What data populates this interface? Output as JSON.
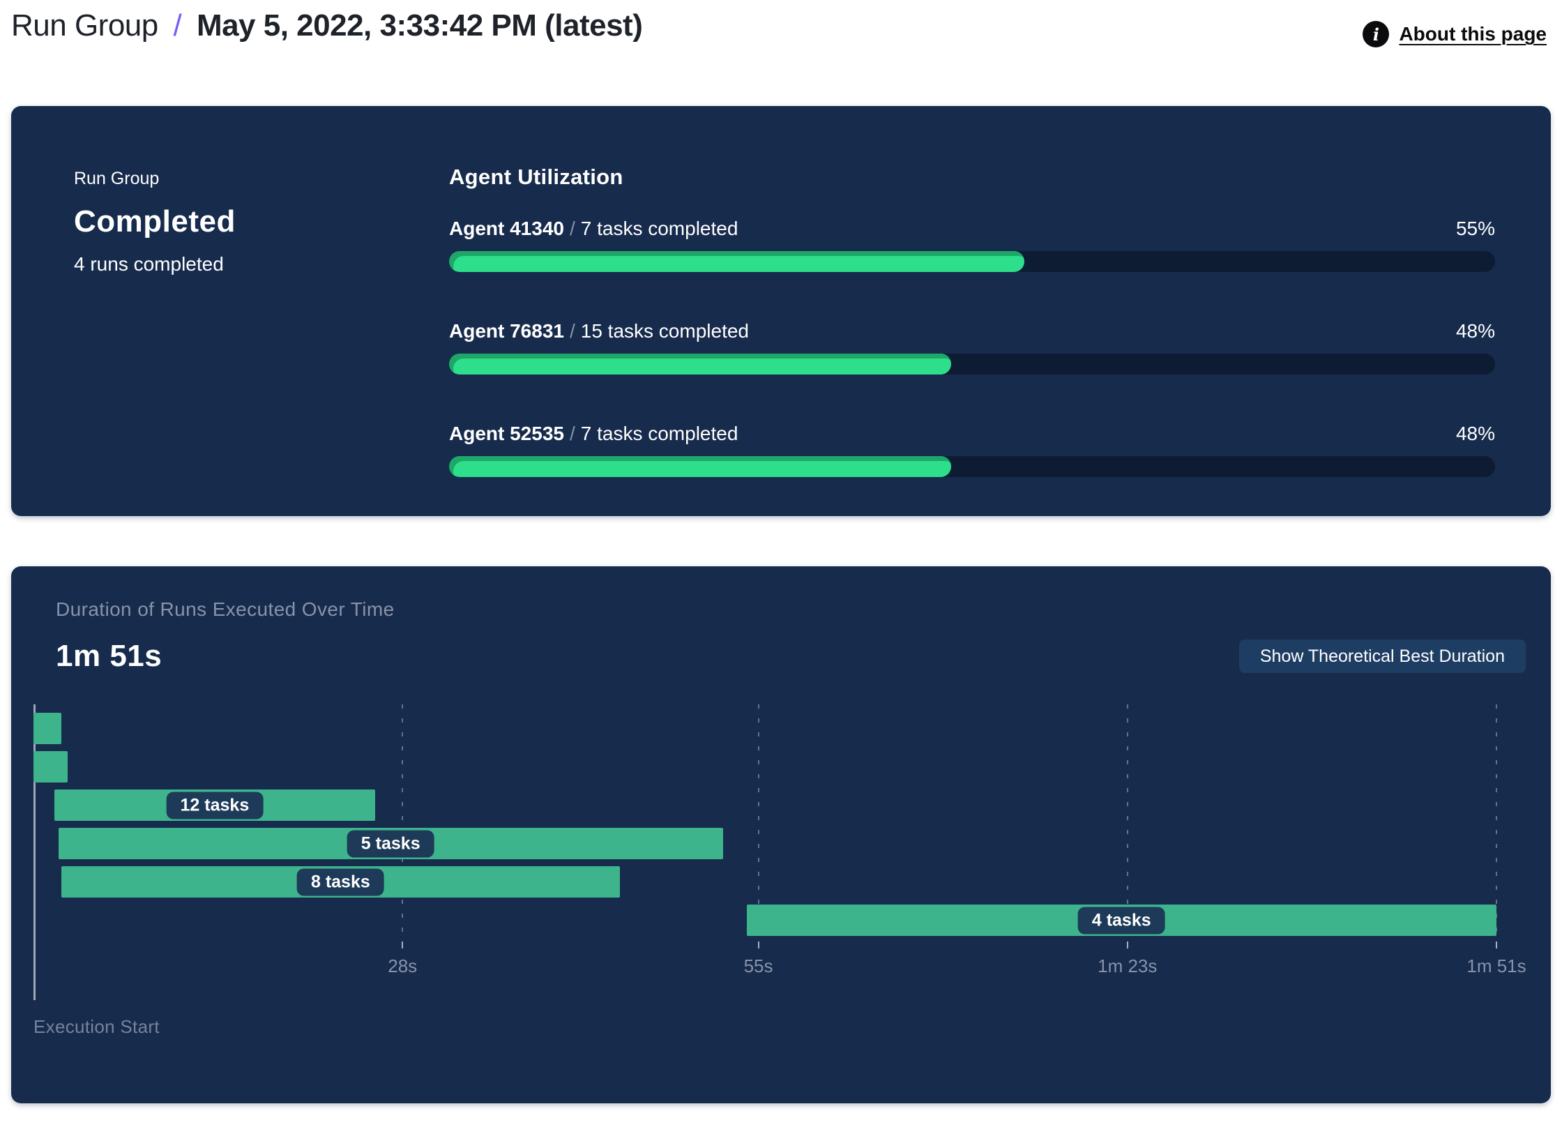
{
  "header": {
    "breadcrumb_root": "Run Group",
    "breadcrumb_separator": "/",
    "breadcrumb_current": "May 5, 2022, 3:33:42 PM (latest)",
    "info_icon_glyph": "i",
    "about_link": "About this page"
  },
  "summary": {
    "label": "Run Group",
    "status": "Completed",
    "runs_completed": "4 runs completed"
  },
  "duration_chart": {
    "button_label": "Show Theoretical Best Duration"
  },
  "colors": {
    "panel_navy": "#172B4D",
    "progress_track": "#0D1C33",
    "progress_green": "#2DDE8B",
    "progress_green_shade": "#1EA768",
    "gantt_green": "#3EB48C",
    "label_pill_navy": "#1D3A58",
    "button_navy": "#1E3D63",
    "accent_purple": "#7B5CF5",
    "muted_text": "#8793A9"
  },
  "chart_data": [
    {
      "type": "bar",
      "title": "Agent Utilization",
      "orientation": "horizontal",
      "categories": [
        "Agent 41340",
        "Agent 76831",
        "Agent 52535"
      ],
      "annotations": [
        "7 tasks completed",
        "15 tasks completed",
        "7 tasks completed"
      ],
      "values": [
        55,
        48,
        48
      ],
      "value_unit": "percent",
      "xlim": [
        0,
        100
      ],
      "grid": false
    },
    {
      "type": "gantt",
      "title": "Duration of Runs Executed Over Time",
      "total_duration_label": "1m 51s",
      "x_origin_label": "Execution Start",
      "time_axis": {
        "min_s": 0,
        "max_s": 111,
        "ticks": [
          {
            "s": 28,
            "label": "28s"
          },
          {
            "s": 55,
            "label": "55s"
          },
          {
            "s": 83,
            "label": "1m 23s"
          },
          {
            "s": 111,
            "label": "1m 51s"
          }
        ]
      },
      "runs": [
        {
          "start_s": 0,
          "end_s": 2.1,
          "tasks_label": ""
        },
        {
          "start_s": 0,
          "end_s": 2.6,
          "tasks_label": ""
        },
        {
          "start_s": 1.6,
          "end_s": 25.9,
          "tasks_label": "12 tasks"
        },
        {
          "start_s": 1.9,
          "end_s": 52.3,
          "tasks_label": "5 tasks"
        },
        {
          "start_s": 2.1,
          "end_s": 44.5,
          "tasks_label": "8 tasks"
        },
        {
          "start_s": 54.1,
          "end_s": 111,
          "tasks_label": "4 tasks"
        }
      ],
      "grid": "dashed-vertical",
      "legend": false
    }
  ]
}
